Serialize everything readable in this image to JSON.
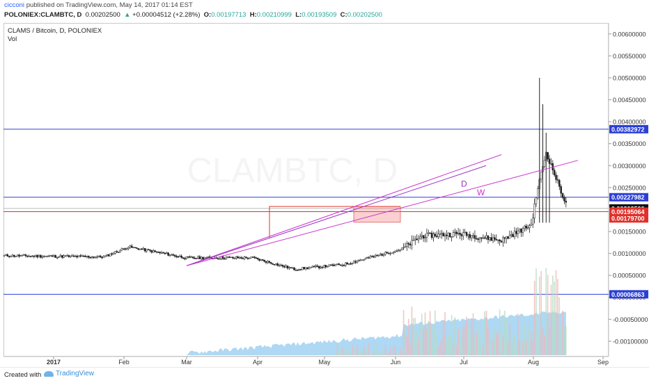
{
  "publish": {
    "author": "cicconi",
    "text": "published on TradingView.com, May 14, 2017 01:14 EST"
  },
  "ohlc": {
    "symbol": "POLONIEX:CLAMBTC, D",
    "last": "0.00202500",
    "change": "+0.00004512 (+2.28%)",
    "o_label": "O:",
    "o": "0.00197713",
    "h_label": "H:",
    "h": "0.00210999",
    "l_label": "L:",
    "l": "0.00193509",
    "c_label": "C:",
    "c": "0.00202500"
  },
  "legend": {
    "title": "CLAMS / Bitcoin, D, POLONIEX",
    "vol": "Vol"
  },
  "watermark": "CLAMBTC, D",
  "footer": {
    "created": "Created with",
    "brand": "TradingView"
  },
  "colors": {
    "up": "#26a69a",
    "down": "#222222",
    "hline": "#2b3fd6",
    "redline": "#e0302a",
    "trend": "#cc33cc",
    "volume_area": "#8cc8f0"
  },
  "chart_data": {
    "type": "candlestick",
    "title": "CLAMS / Bitcoin, D, POLONIEX",
    "x_ticks": [
      "2017",
      "Feb",
      "Mar",
      "Apr",
      "May",
      "Jun",
      "Jul",
      "Aug",
      "Sep"
    ],
    "y_ticks": [
      "0.00600000",
      "0.00550000",
      "0.00500000",
      "0.00450000",
      "0.00400000",
      "0.00350000",
      "0.00300000",
      "0.00250000",
      "0.00150000",
      "0.00100000",
      "0.00050000",
      "0.00000000",
      "-0.00050000",
      "-0.00100000"
    ],
    "ylim": [
      -0.00135,
      0.00625
    ],
    "price_labels": [
      {
        "value": 0.00382972,
        "text": "0.00382972",
        "color": "#2b3fd6"
      },
      {
        "value": 0.00227982,
        "text": "0.00227982",
        "color": "#2b3fd6"
      },
      {
        "value": 0.002025,
        "text": "0.00202500",
        "color": "#111111"
      },
      {
        "value": 0.00195064,
        "text": "0.00195064",
        "color": "#e0302a"
      },
      {
        "value": 0.001797,
        "text": "0.00179700",
        "color": "#e0302a"
      },
      {
        "value": 6.863e-05,
        "text": "0.00006863",
        "color": "#2b3fd6"
      }
    ],
    "horizontal_lines": [
      0.00382972,
      0.00227982,
      6.863e-05,
      0.00195064
    ],
    "trendline_labels": [
      {
        "text": "D",
        "color": "#9933cc"
      },
      {
        "text": "W",
        "color": "#cc33cc"
      }
    ],
    "segments": [
      {
        "t0": 0,
        "t1": 60,
        "c0": 0.00095,
        "c1": 0.00092
      },
      {
        "t0": 60,
        "t1": 75,
        "c0": 0.00092,
        "c1": 0.00115
      },
      {
        "t0": 75,
        "t1": 110,
        "c0": 0.00115,
        "c1": 0.0009
      },
      {
        "t0": 110,
        "t1": 150,
        "c0": 0.0009,
        "c1": 0.0009
      },
      {
        "t0": 150,
        "t1": 175,
        "c0": 0.0009,
        "c1": 0.00064
      },
      {
        "t0": 175,
        "t1": 205,
        "c0": 0.00064,
        "c1": 0.00075
      },
      {
        "t0": 205,
        "t1": 240,
        "c0": 0.00075,
        "c1": 0.0011
      },
      {
        "t0": 240,
        "t1": 252,
        "c0": 0.0011,
        "c1": 0.0014
      },
      {
        "t0": 252,
        "t1": 275,
        "c0": 0.0014,
        "c1": 0.00145
      },
      {
        "t0": 275,
        "t1": 300,
        "c0": 0.00145,
        "c1": 0.0013
      },
      {
        "t0": 300,
        "t1": 318,
        "c0": 0.0013,
        "c1": 0.00165
      },
      {
        "t0": 318,
        "t1": 322,
        "c0": 0.00165,
        "c1": 0.0025
      },
      {
        "t0": 322,
        "t1": 327,
        "c0": 0.0025,
        "c1": 0.0033
      },
      {
        "t0": 327,
        "t1": 340,
        "c0": 0.0033,
        "c1": 0.00202
      }
    ],
    "spikes": [
      {
        "t": 323,
        "h": 0.005
      },
      {
        "t": 325,
        "h": 0.0044
      },
      {
        "t": 327,
        "h": 0.00375
      },
      {
        "t": 329,
        "h": 0.0032
      }
    ]
  }
}
